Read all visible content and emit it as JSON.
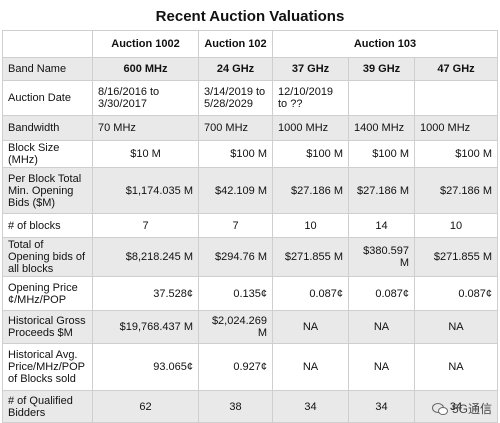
{
  "title": "Recent Auction Valuations",
  "header_row": {
    "auctions": [
      "Auction 1002",
      "Auction 102",
      "Auction 103"
    ]
  },
  "rows": [
    {
      "label": "Band Name",
      "cells": [
        "600 MHz",
        "24 GHz",
        "37 GHz",
        "39 GHz",
        "47 GHz"
      ]
    },
    {
      "label": "Auction Date",
      "cells": [
        "8/16/2016 to 3/30/2017",
        "3/14/2019 to 5/28/2029",
        "12/10/2019 to ??",
        null,
        null
      ]
    },
    {
      "label": "Bandwidth",
      "cells": [
        "70 MHz",
        "700 MHz",
        "1000 MHz",
        "1400 MHz",
        "1000 MHz"
      ]
    },
    {
      "label": "Block Size (MHz)",
      "cells": [
        "$10 M",
        "$100 M",
        "$100 M",
        "$100 M",
        "$100 M"
      ]
    },
    {
      "label": "Per Block Total Min. Opening Bids ($M)",
      "cells": [
        "$1,174.035 M",
        "$42.109 M",
        "$27.186 M",
        "$27.186 M",
        "$27.186 M"
      ]
    },
    {
      "label": "# of blocks",
      "cells": [
        7,
        7,
        10,
        14,
        10
      ]
    },
    {
      "label": "Total of Opening bids of all blocks",
      "cells": [
        "$8,218.245 M",
        "$294.76 M",
        "$271.855 M",
        "$380.597 M",
        "$271.855 M"
      ]
    },
    {
      "label": "Opening Price ¢/MHz/POP",
      "cells": [
        "37.528¢",
        "0.135¢",
        "0.087¢",
        "0.087¢",
        "0.087¢"
      ]
    },
    {
      "label": "Historical Gross Proceeds $M",
      "cells": [
        "$19,768.437 M",
        "$2,024.269 M",
        "NA",
        "NA",
        "NA"
      ]
    },
    {
      "label": "Historical Avg. Price/MHz/POP of Blocks sold",
      "cells": [
        "93.065¢",
        "0.927¢",
        "NA",
        "NA",
        "NA"
      ]
    },
    {
      "label": "# of Qualified Bidders",
      "cells": [
        62,
        38,
        34,
        34,
        34
      ]
    }
  ],
  "watermark": "5G通信"
}
